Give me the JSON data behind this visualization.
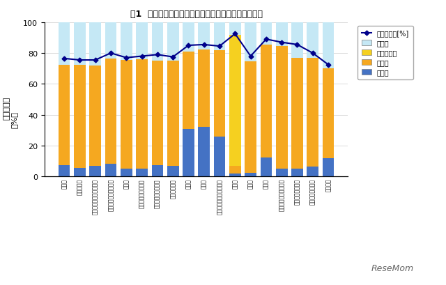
{
  "title": "図1  進路決定率と、卒業者の進路内訳（学部系統別）",
  "categories": [
    "文学部",
    "外国語学部",
    "人文・教養・人間科学部",
    "教育・教員養成系学部",
    "法学部",
    "経済・経営・商学部",
    "社会・社会福祉学部",
    "国際関係学部",
    "理学部",
    "工学部",
    "農・獸医畜産・水産学部",
    "医学部",
    "歯学部",
    "薬学部",
    "看護・医療・栄養学部",
    "家政・生活科学部",
    "体育・健康科学部",
    "芸術学部"
  ],
  "advancement": [
    7.5,
    5.5,
    7.0,
    8.0,
    5.0,
    5.0,
    7.5,
    7.0,
    31.0,
    32.0,
    26.0,
    2.0,
    2.5,
    12.5,
    5.0,
    5.0,
    6.5,
    12.0
  ],
  "employed": [
    65.0,
    67.0,
    65.0,
    68.5,
    70.5,
    71.0,
    67.5,
    68.0,
    50.0,
    50.5,
    56.0,
    5.0,
    72.0,
    73.0,
    79.5,
    72.0,
    70.5,
    58.0
  ],
  "clinical": [
    0.0,
    0.0,
    0.0,
    0.0,
    0.0,
    0.0,
    0.0,
    0.0,
    0.0,
    0.0,
    0.0,
    85.0,
    0.0,
    0.0,
    0.0,
    0.0,
    0.0,
    0.0
  ],
  "other": [
    27.5,
    27.5,
    28.0,
    23.5,
    24.5,
    24.0,
    25.0,
    25.0,
    19.0,
    17.5,
    18.0,
    8.0,
    25.5,
    14.5,
    15.5,
    23.0,
    23.0,
    30.0
  ],
  "rate": [
    76.5,
    75.5,
    75.5,
    80.0,
    77.0,
    78.0,
    79.0,
    77.5,
    85.0,
    85.5,
    84.5,
    92.5,
    78.0,
    89.0,
    87.0,
    85.5,
    80.0,
    72.5
  ],
  "color_advancement": "#4472C4",
  "color_employed": "#F5A820",
  "color_clinical": "#F5D020",
  "color_other": "#C5E8F5",
  "color_rate_line": "#00008B",
  "ylabel": "進路決定率「%」",
  "ylim": [
    0,
    100
  ],
  "background_color": "#FFFFFF",
  "grid_color": "#CCCCCC"
}
